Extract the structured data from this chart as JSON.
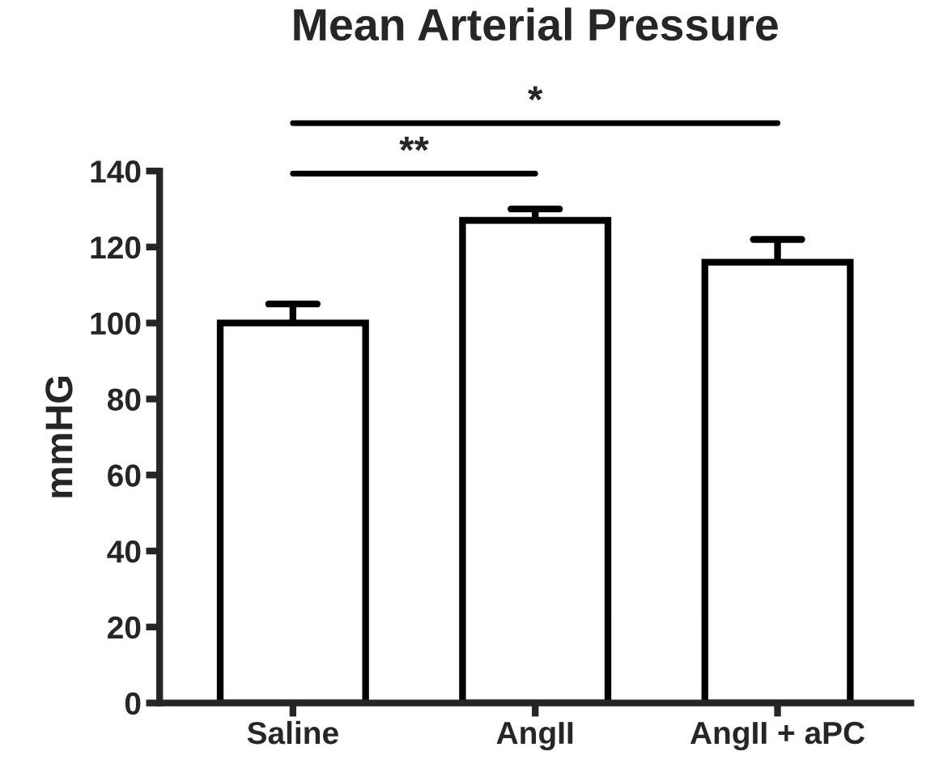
{
  "chart_data": {
    "type": "bar",
    "title": "Mean Arterial Pressure",
    "ylabel": "mmHG",
    "categories": [
      "Saline",
      "AngII",
      "AngII + aPC"
    ],
    "values": [
      100,
      127,
      116
    ],
    "errors": [
      [
        100,
        105
      ],
      [
        127,
        130
      ],
      [
        116,
        122
      ]
    ],
    "color": "#ffffff",
    "ylim": [
      0,
      140
    ],
    "yticks": [
      0,
      20,
      40,
      60,
      80,
      100,
      120,
      140
    ],
    "grid": false,
    "annotations": [
      "**",
      "*"
    ]
  }
}
